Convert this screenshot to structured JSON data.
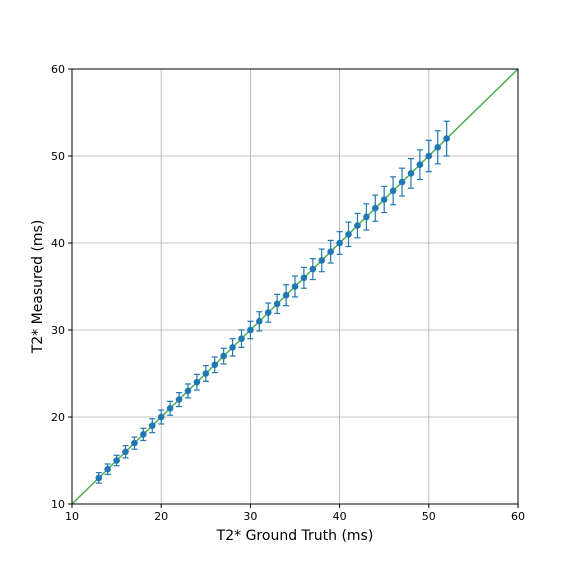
{
  "chart_data": {
    "type": "scatter",
    "xlabel": "T2* Ground Truth (ms)",
    "ylabel": "T2* Measured (ms)",
    "xlim": [
      10,
      60
    ],
    "ylim": [
      10,
      60
    ],
    "xticks": [
      "10",
      "20",
      "30",
      "40",
      "50",
      "60"
    ],
    "yticks": [
      "10",
      "20",
      "30",
      "40",
      "50",
      "60"
    ],
    "grid": true,
    "colors": {
      "points": "#1f77b4",
      "identity_line": "#4caf50",
      "grid": "#b0b0b0"
    },
    "identity_line": {
      "from": [
        10,
        10
      ],
      "to": [
        60,
        60
      ]
    },
    "series": [
      {
        "x": [
          13,
          14,
          15,
          16,
          17,
          18,
          19,
          20,
          21,
          22,
          23,
          24,
          25,
          26,
          27,
          28,
          29,
          30,
          31,
          32,
          33,
          34,
          35,
          36,
          37,
          38,
          39,
          40,
          41,
          42,
          43,
          44,
          45,
          46,
          47,
          48,
          49,
          50,
          51,
          52
        ],
        "y": [
          13,
          14,
          15,
          16,
          17,
          18,
          19,
          20,
          21,
          22,
          23,
          24,
          25,
          26,
          27,
          28,
          29,
          30,
          31,
          32,
          33,
          34,
          35,
          36,
          37,
          38,
          39,
          40,
          41,
          42,
          43,
          44,
          45,
          46,
          47,
          48,
          49,
          50,
          51,
          52
        ],
        "yerr": [
          0.6,
          0.6,
          0.6,
          0.7,
          0.7,
          0.7,
          0.8,
          0.8,
          0.8,
          0.8,
          0.8,
          0.9,
          0.9,
          0.9,
          0.9,
          1.0,
          1.0,
          1.0,
          1.1,
          1.1,
          1.1,
          1.2,
          1.2,
          1.2,
          1.2,
          1.3,
          1.3,
          1.3,
          1.4,
          1.4,
          1.5,
          1.5,
          1.5,
          1.6,
          1.6,
          1.7,
          1.7,
          1.8,
          1.9,
          2.0
        ]
      }
    ]
  }
}
